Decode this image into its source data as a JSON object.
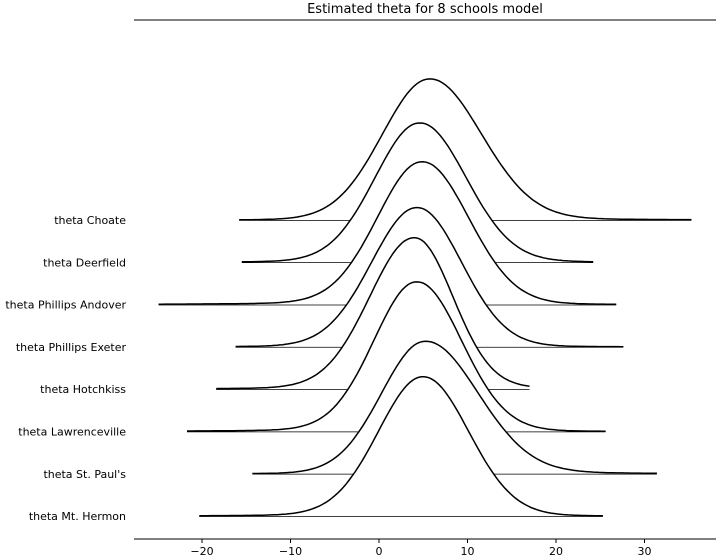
{
  "chart_data": {
    "type": "ridgeline",
    "title": "Estimated theta for 8 schools model",
    "xlabel": "",
    "ylabel": "",
    "xlim": [
      -28,
      38
    ],
    "x_ticks": [
      -20,
      -10,
      0,
      10,
      20,
      30
    ],
    "grid": false,
    "legend": "none",
    "line_color": "#000000",
    "series": [
      {
        "name": "theta Choate",
        "x_min": -15.8,
        "x_max": 35.3,
        "mode": 5.7,
        "peak_density": 0.082,
        "sd_left": 5.3,
        "sd_right": 5.8,
        "right_tail": 1.0,
        "left_tail": 0.3
      },
      {
        "name": "theta Deerfield",
        "x_min": -15.5,
        "x_max": 24.2,
        "mode": 4.6,
        "peak_density": 0.081,
        "sd_left": 5.0,
        "sd_right": 5.2,
        "right_tail": 0.6,
        "left_tail": 0.6
      },
      {
        "name": "theta Phillips Andover",
        "x_min": -24.9,
        "x_max": 26.8,
        "mode": 4.9,
        "peak_density": 0.083,
        "sd_left": 5.0,
        "sd_right": 5.2,
        "right_tail": 0.5,
        "left_tail": 1.2
      },
      {
        "name": "theta Phillips Exeter",
        "x_min": -16.2,
        "x_max": 27.6,
        "mode": 4.3,
        "peak_density": 0.081,
        "sd_left": 5.1,
        "sd_right": 5.0,
        "right_tail": 0.4,
        "left_tail": 0.5
      },
      {
        "name": "theta Hotchkiss",
        "x_min": -18.4,
        "x_max": 17.0,
        "mode": 4.0,
        "peak_density": 0.088,
        "sd_left": 5.0,
        "sd_right": 4.3,
        "right_tail": 0.9,
        "left_tail": 0.9
      },
      {
        "name": "theta Lawrenceville",
        "x_min": -21.7,
        "x_max": 25.6,
        "mode": 4.3,
        "peak_density": 0.087,
        "sd_left": 4.8,
        "sd_right": 5.0,
        "right_tail": 0.4,
        "left_tail": 1.0
      },
      {
        "name": "theta St. Paul's",
        "x_min": -14.3,
        "x_max": 31.4,
        "mode": 5.2,
        "peak_density": 0.077,
        "sd_left": 4.9,
        "sd_right": 5.9,
        "right_tail": 1.2,
        "left_tail": 0.3
      },
      {
        "name": "theta Mt. Hermon",
        "x_min": -20.3,
        "x_max": 25.3,
        "mode": 5.0,
        "peak_density": 0.081,
        "sd_left": 5.0,
        "sd_right": 5.1,
        "right_tail": 0.4,
        "left_tail": 0.8
      }
    ]
  }
}
